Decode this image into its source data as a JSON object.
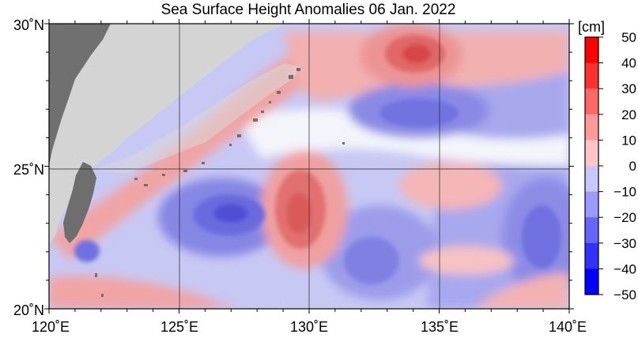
{
  "title": "Sea Surface Height Anomalies  06 Jan. 2022",
  "map": {
    "lat_labels": [
      "30˚N",
      "25˚N",
      "20˚N"
    ],
    "lon_labels": [
      "120˚E",
      "125˚E",
      "130˚E",
      "135˚E",
      "140˚E"
    ],
    "lat_range": [
      20,
      30
    ],
    "lon_range": [
      120,
      140
    ]
  },
  "colorbar": {
    "unit": "[cm]",
    "ticks": [
      "50",
      "40",
      "30",
      "20",
      "10",
      "0",
      "−10",
      "−20",
      "−30",
      "−40",
      "−50"
    ],
    "colors": [
      "#ff0000",
      "#ff3030",
      "#ff6666",
      "#ff9a9a",
      "#ffc4c4",
      "#ffffff",
      "#c8c8ff",
      "#9a9aff",
      "#6666ff",
      "#3232ff",
      "#0000ff"
    ]
  },
  "colors": {
    "land_taiwan": "#6e6e6e",
    "land_china": "#d4d4d4",
    "ocean_zero": "#ffffff",
    "positive_light": "#f4b4b4",
    "positive_mid": "#ec8c8c",
    "positive_strong": "#e05050",
    "negative_light": "#b8b8f0",
    "negative_mid": "#8c8ce8",
    "negative_strong": "#5050dc"
  }
}
